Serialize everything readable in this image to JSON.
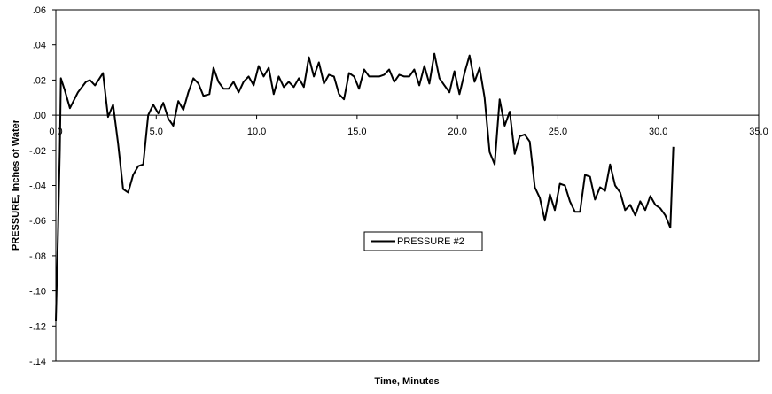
{
  "chart_data": {
    "type": "line",
    "xlabel": "Time, Minutes",
    "ylabel": "PRESSURE, Inches of Water",
    "xlim": [
      0,
      35
    ],
    "ylim": [
      -0.14,
      0.06
    ],
    "x_ticks": [
      0,
      5,
      10,
      15,
      20,
      25,
      30,
      35
    ],
    "x_tick_labels": [
      "0.0",
      "5.0",
      "10.0",
      "15.0",
      "20.0",
      "25.0",
      "30.0",
      "35.0"
    ],
    "y_ticks": [
      0.06,
      0.04,
      0.02,
      0,
      -0.02,
      -0.04,
      -0.06,
      -0.08,
      -0.1,
      -0.12,
      -0.14
    ],
    "y_tick_labels": [
      ".06",
      ".04",
      ".02",
      ".00",
      "-.02",
      "-.04",
      "-.06",
      "-.08",
      "-.10",
      "-.12",
      "-.14"
    ],
    "grid": false,
    "legend": "center-right",
    "series": [
      {
        "name": "PRESSURE #2",
        "color": "#000000",
        "points": [
          [
            0.0,
            -0.117
          ],
          [
            0.05,
            -0.095
          ],
          [
            0.1,
            -0.07
          ],
          [
            0.15,
            -0.045
          ],
          [
            0.2,
            -0.02
          ],
          [
            0.25,
            0.021
          ],
          [
            0.45,
            0.014
          ],
          [
            0.7,
            0.004
          ],
          [
            1.1,
            0.013
          ],
          [
            1.5,
            0.019
          ],
          [
            1.7,
            0.02
          ],
          [
            1.95,
            0.017
          ],
          [
            2.35,
            0.024
          ],
          [
            2.6,
            -0.001
          ],
          [
            2.85,
            0.006
          ],
          [
            3.1,
            -0.016
          ],
          [
            3.35,
            -0.042
          ],
          [
            3.6,
            -0.044
          ],
          [
            3.85,
            -0.034
          ],
          [
            4.1,
            -0.029
          ],
          [
            4.35,
            -0.028
          ],
          [
            4.6,
            0.0
          ],
          [
            4.85,
            0.006
          ],
          [
            5.1,
            0.001
          ],
          [
            5.35,
            0.007
          ],
          [
            5.6,
            -0.002
          ],
          [
            5.85,
            -0.006
          ],
          [
            6.1,
            0.008
          ],
          [
            6.35,
            0.003
          ],
          [
            6.6,
            0.013
          ],
          [
            6.85,
            0.021
          ],
          [
            7.1,
            0.018
          ],
          [
            7.35,
            0.011
          ],
          [
            7.65,
            0.012
          ],
          [
            7.85,
            0.027
          ],
          [
            8.1,
            0.019
          ],
          [
            8.35,
            0.015
          ],
          [
            8.6,
            0.015
          ],
          [
            8.85,
            0.019
          ],
          [
            9.1,
            0.013
          ],
          [
            9.35,
            0.019
          ],
          [
            9.6,
            0.022
          ],
          [
            9.85,
            0.017
          ],
          [
            10.1,
            0.028
          ],
          [
            10.35,
            0.022
          ],
          [
            10.6,
            0.027
          ],
          [
            10.85,
            0.012
          ],
          [
            11.1,
            0.022
          ],
          [
            11.35,
            0.016
          ],
          [
            11.6,
            0.019
          ],
          [
            11.85,
            0.016
          ],
          [
            12.1,
            0.021
          ],
          [
            12.35,
            0.016
          ],
          [
            12.6,
            0.033
          ],
          [
            12.85,
            0.022
          ],
          [
            13.1,
            0.03
          ],
          [
            13.35,
            0.018
          ],
          [
            13.6,
            0.023
          ],
          [
            13.85,
            0.022
          ],
          [
            14.1,
            0.012
          ],
          [
            14.35,
            0.009
          ],
          [
            14.6,
            0.024
          ],
          [
            14.85,
            0.022
          ],
          [
            15.1,
            0.015
          ],
          [
            15.35,
            0.026
          ],
          [
            15.6,
            0.022
          ],
          [
            15.85,
            0.022
          ],
          [
            16.1,
            0.022
          ],
          [
            16.35,
            0.023
          ],
          [
            16.6,
            0.026
          ],
          [
            16.85,
            0.019
          ],
          [
            17.1,
            0.023
          ],
          [
            17.35,
            0.022
          ],
          [
            17.6,
            0.022
          ],
          [
            17.85,
            0.026
          ],
          [
            18.1,
            0.017
          ],
          [
            18.35,
            0.028
          ],
          [
            18.6,
            0.018
          ],
          [
            18.85,
            0.035
          ],
          [
            19.1,
            0.021
          ],
          [
            19.35,
            0.017
          ],
          [
            19.6,
            0.013
          ],
          [
            19.85,
            0.025
          ],
          [
            20.1,
            0.012
          ],
          [
            20.35,
            0.024
          ],
          [
            20.6,
            0.034
          ],
          [
            20.85,
            0.019
          ],
          [
            21.1,
            0.027
          ],
          [
            21.35,
            0.01
          ],
          [
            21.6,
            -0.021
          ],
          [
            21.85,
            -0.028
          ],
          [
            22.1,
            0.009
          ],
          [
            22.35,
            -0.006
          ],
          [
            22.6,
            0.002
          ],
          [
            22.85,
            -0.022
          ],
          [
            23.1,
            -0.012
          ],
          [
            23.35,
            -0.011
          ],
          [
            23.6,
            -0.015
          ],
          [
            23.85,
            -0.041
          ],
          [
            24.1,
            -0.047
          ],
          [
            24.35,
            -0.06
          ],
          [
            24.6,
            -0.045
          ],
          [
            24.85,
            -0.054
          ],
          [
            25.1,
            -0.039
          ],
          [
            25.35,
            -0.04
          ],
          [
            25.6,
            -0.049
          ],
          [
            25.85,
            -0.055
          ],
          [
            26.1,
            -0.055
          ],
          [
            26.35,
            -0.034
          ],
          [
            26.6,
            -0.035
          ],
          [
            26.85,
            -0.048
          ],
          [
            27.1,
            -0.041
          ],
          [
            27.35,
            -0.043
          ],
          [
            27.6,
            -0.028
          ],
          [
            27.85,
            -0.04
          ],
          [
            28.1,
            -0.044
          ],
          [
            28.35,
            -0.054
          ],
          [
            28.6,
            -0.051
          ],
          [
            28.85,
            -0.057
          ],
          [
            29.1,
            -0.049
          ],
          [
            29.35,
            -0.054
          ],
          [
            29.6,
            -0.046
          ],
          [
            29.85,
            -0.051
          ],
          [
            30.1,
            -0.053
          ],
          [
            30.35,
            -0.057
          ],
          [
            30.6,
            -0.064
          ],
          [
            30.75,
            -0.018
          ]
        ]
      }
    ]
  }
}
